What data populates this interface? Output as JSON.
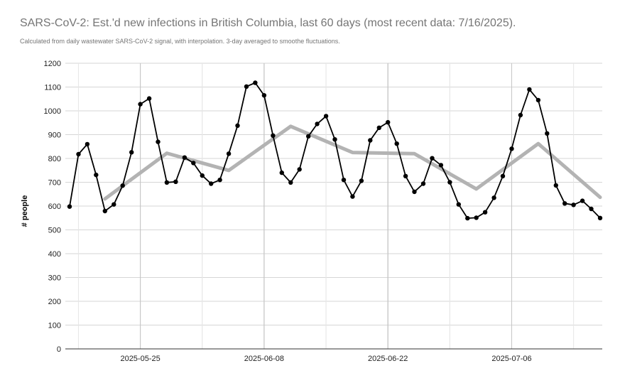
{
  "chart_data": {
    "type": "line",
    "title": "SARS-CoV-2: Est.'d new infections in British Columbia, last 60 days (most recent data: 7/16/2025).",
    "subtitle": "Calculated from daily wastewater SARS-CoV-2 signal, with interpolation. 3-day averaged to smoothe fluctuations.",
    "ylabel": "# people",
    "xlabel": "",
    "ylim": [
      0,
      1200
    ],
    "yticks": [
      0,
      100,
      200,
      300,
      400,
      500,
      600,
      700,
      800,
      900,
      1000,
      1100,
      1200
    ],
    "x_dates": [
      "2025-05-17",
      "2025-05-18",
      "2025-05-19",
      "2025-05-20",
      "2025-05-21",
      "2025-05-22",
      "2025-05-23",
      "2025-05-24",
      "2025-05-25",
      "2025-05-26",
      "2025-05-27",
      "2025-05-28",
      "2025-05-29",
      "2025-05-30",
      "2025-05-31",
      "2025-06-01",
      "2025-06-02",
      "2025-06-03",
      "2025-06-04",
      "2025-06-05",
      "2025-06-06",
      "2025-06-07",
      "2025-06-08",
      "2025-06-09",
      "2025-06-10",
      "2025-06-11",
      "2025-06-12",
      "2025-06-13",
      "2025-06-14",
      "2025-06-15",
      "2025-06-16",
      "2025-06-17",
      "2025-06-18",
      "2025-06-19",
      "2025-06-20",
      "2025-06-21",
      "2025-06-22",
      "2025-06-23",
      "2025-06-24",
      "2025-06-25",
      "2025-06-26",
      "2025-06-27",
      "2025-06-28",
      "2025-06-29",
      "2025-06-30",
      "2025-07-01",
      "2025-07-02",
      "2025-07-03",
      "2025-07-04",
      "2025-07-05",
      "2025-07-06",
      "2025-07-07",
      "2025-07-08",
      "2025-07-09",
      "2025-07-10",
      "2025-07-11",
      "2025-07-12",
      "2025-07-13",
      "2025-07-14",
      "2025-07-15",
      "2025-07-16"
    ],
    "x_tick_labels": [
      "2025-05-25",
      "2025-06-08",
      "2025-06-22",
      "2025-07-06"
    ],
    "grid": true,
    "legend": "none",
    "series": [
      {
        "style": "daily",
        "color": "#000000",
        "values": [
          598,
          818,
          860,
          731,
          579,
          607,
          686,
          826,
          1028,
          1052,
          870,
          699,
          702,
          804,
          781,
          728,
          694,
          710,
          820,
          938,
          1102,
          1118,
          1065,
          896,
          740,
          699,
          754,
          893,
          945,
          978,
          880,
          710,
          640,
          706,
          876,
          929,
          952,
          862,
          726,
          660,
          694,
          801,
          772,
          700,
          607,
          549,
          551,
          574,
          635,
          726,
          841,
          982,
          1090,
          1045,
          905,
          687,
          611,
          605,
          622,
          588,
          550
        ]
      },
      {
        "style": "weekly trend",
        "color": "#b3b3b3",
        "x_dates": [
          "2025-05-21",
          "2025-05-28",
          "2025-06-04",
          "2025-06-11",
          "2025-06-18",
          "2025-06-25",
          "2025-07-02",
          "2025-07-09",
          "2025-07-16"
        ],
        "values": [
          630,
          822,
          750,
          935,
          825,
          820,
          672,
          862,
          637
        ]
      }
    ]
  }
}
